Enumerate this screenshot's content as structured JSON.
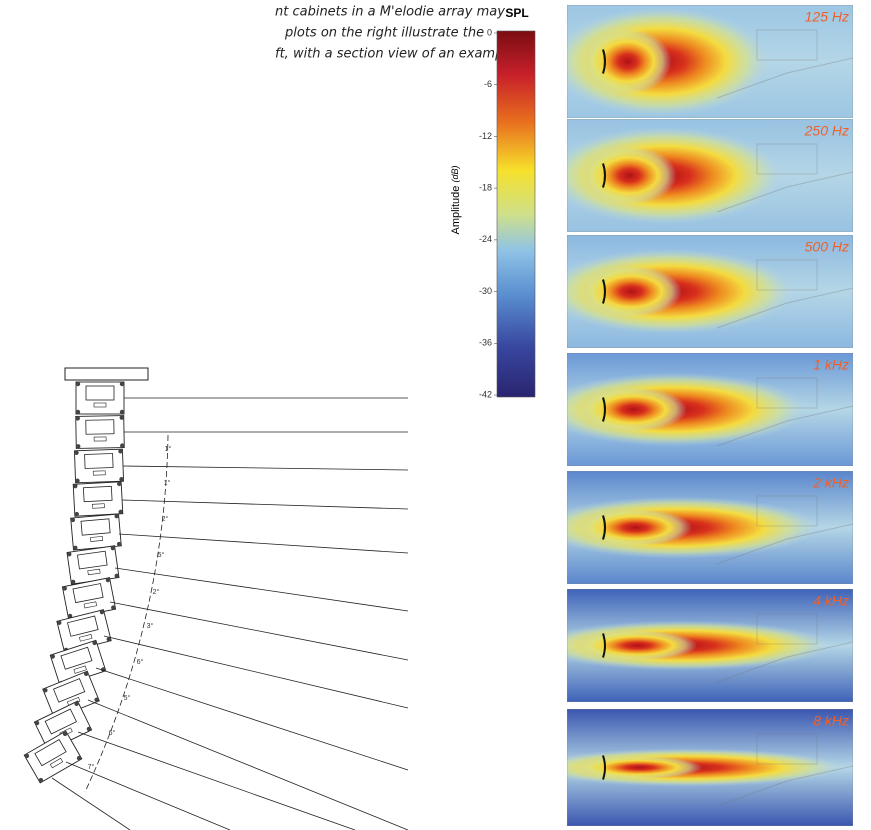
{
  "intro": {
    "lines": [
      "nt cabinets in a M'elodie array may",
      "plots on the right illustrate the",
      "ft, with a section view of an example"
    ]
  },
  "colorbar": {
    "title": "SPL",
    "axis_label": "Amplitude",
    "unit": "(dB)",
    "ticks": [
      0,
      -6,
      -12,
      -18,
      -24,
      -30,
      -36,
      -42
    ]
  },
  "array": {
    "angles": [
      "1°",
      "1°",
      "2°",
      "5°",
      "2°",
      "3°",
      "6°",
      "5°",
      "6°",
      "7°"
    ]
  },
  "plots": {
    "labels": [
      "125 Hz",
      "250 Hz",
      "500 Hz",
      "1 kHz",
      "2 kHz",
      "4 kHz",
      "8 kHz"
    ]
  }
}
